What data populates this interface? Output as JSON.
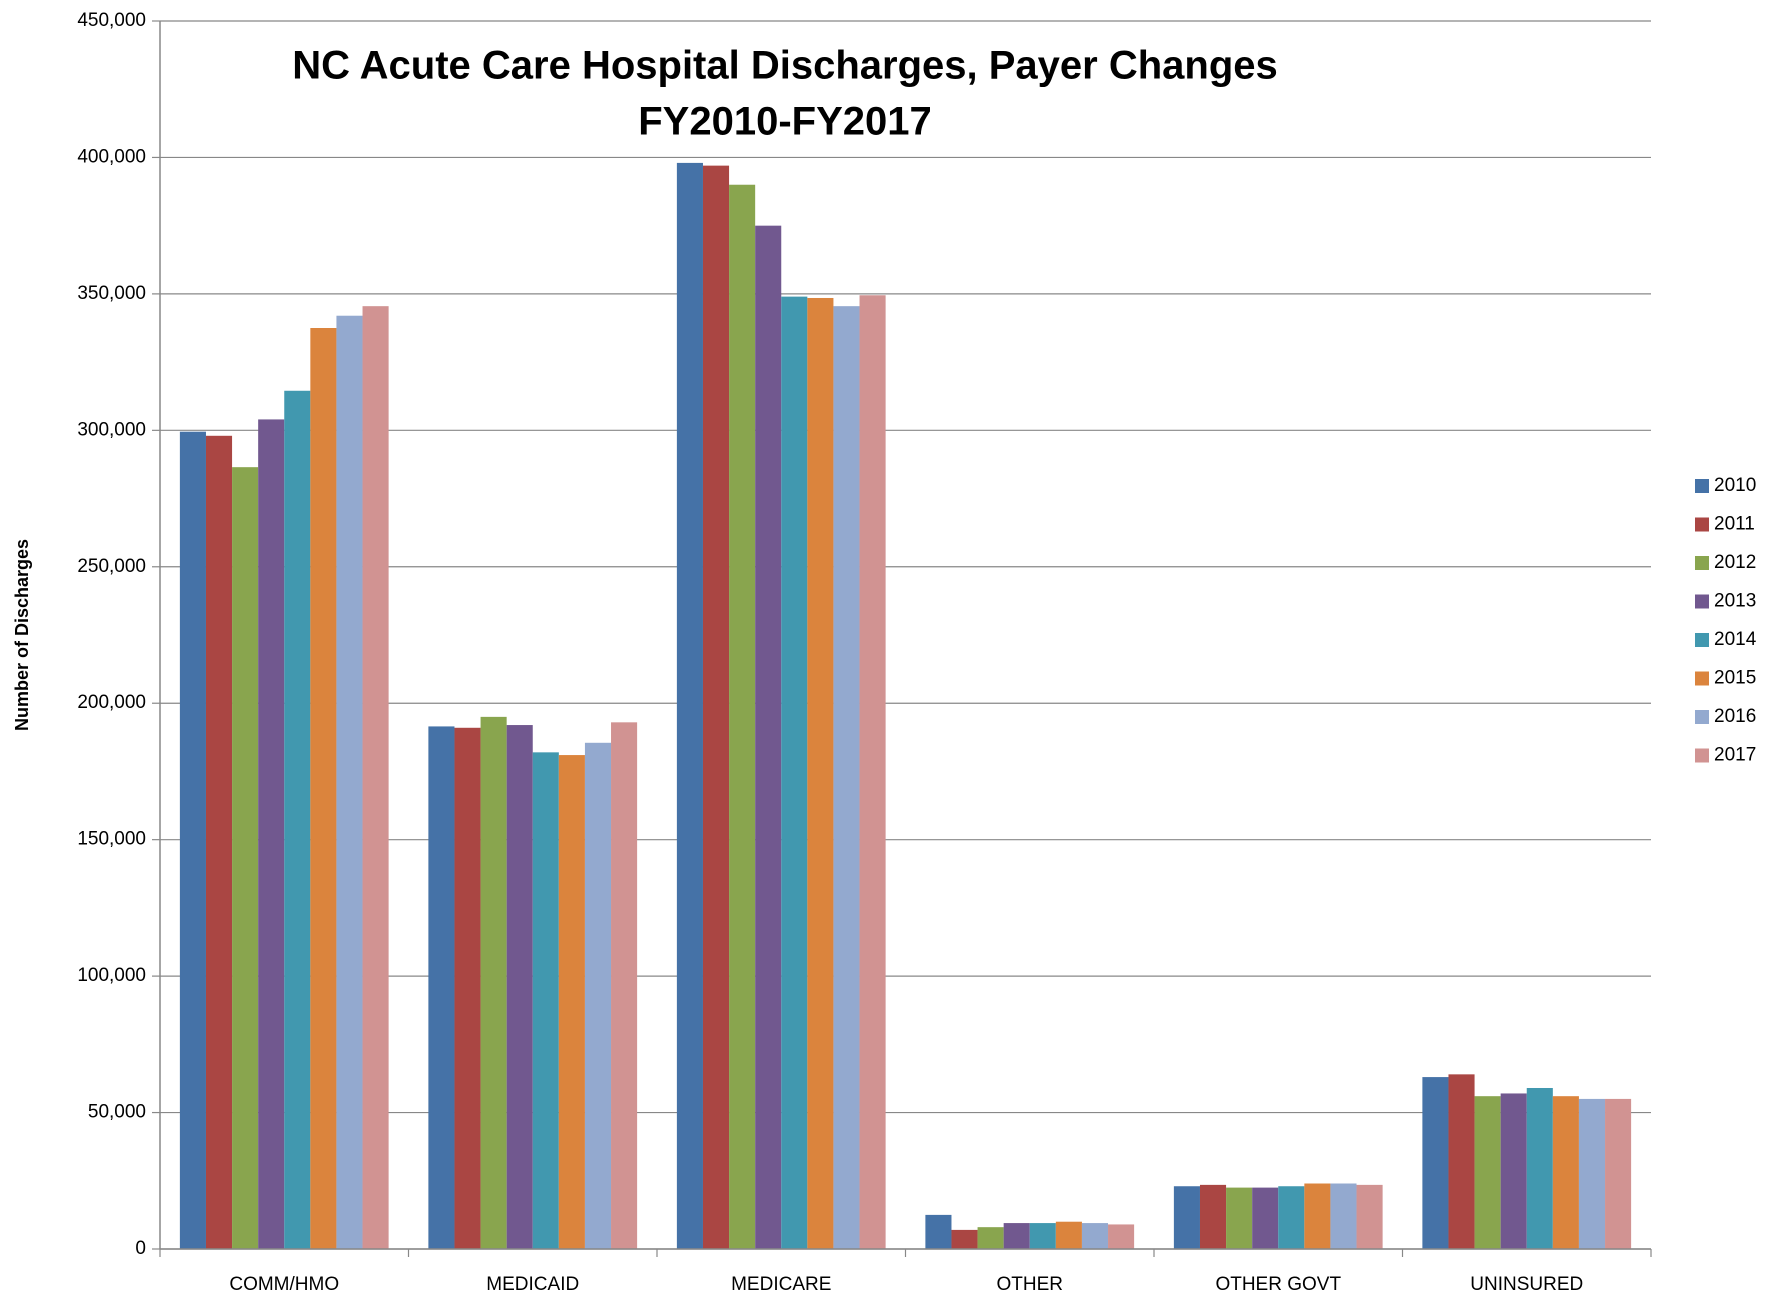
{
  "chart_data": {
    "type": "bar",
    "title": "NC Acute Care Hospital Discharges, Payer Changes",
    "subtitle": "FY2010-FY2017",
    "y_label": "Number of Discharges",
    "categories": [
      "COMM/HMO",
      "MEDICAID",
      "MEDICARE",
      "OTHER",
      "OTHER GOVT",
      "UNINSURED"
    ],
    "series": [
      {
        "name": "2010",
        "color": "#4572a7",
        "values": [
          299500,
          191500,
          398000,
          12500,
          23000,
          63000
        ]
      },
      {
        "name": "2011",
        "color": "#aa4643",
        "values": [
          298000,
          191000,
          397000,
          7000,
          23500,
          64000
        ]
      },
      {
        "name": "2012",
        "color": "#89a54e",
        "values": [
          286500,
          195000,
          390000,
          8000,
          22500,
          56000
        ]
      },
      {
        "name": "2013",
        "color": "#71588f",
        "values": [
          304000,
          192000,
          375000,
          9500,
          22500,
          57000
        ]
      },
      {
        "name": "2014",
        "color": "#4198af",
        "values": [
          314500,
          182000,
          349000,
          9500,
          23000,
          59000
        ]
      },
      {
        "name": "2015",
        "color": "#db843d",
        "values": [
          337500,
          181000,
          348500,
          10000,
          24000,
          56000
        ]
      },
      {
        "name": "2016",
        "color": "#93a9cf",
        "values": [
          342000,
          185500,
          345500,
          9500,
          24000,
          55000
        ]
      },
      {
        "name": "2017",
        "color": "#d19392",
        "values": [
          345500,
          193000,
          349500,
          9000,
          23500,
          55000
        ]
      }
    ],
    "ylim": [
      0,
      450000
    ],
    "yticks": [
      0,
      {
        "value": 50000,
        "label": "50,000"
      },
      {
        "value": 100000,
        "label": "100,000"
      },
      {
        "value": 150000,
        "label": "150,000"
      },
      {
        "value": 200000,
        "label": "200,000"
      },
      {
        "value": 250000,
        "label": "250,000"
      },
      {
        "value": 300000,
        "label": "300,000"
      },
      {
        "value": 350000,
        "label": "350,000"
      },
      {
        "value": 400000,
        "label": "400,000"
      },
      {
        "value": 450000,
        "label": "450,000"
      }
    ],
    "grid": true,
    "legend": "right"
  }
}
